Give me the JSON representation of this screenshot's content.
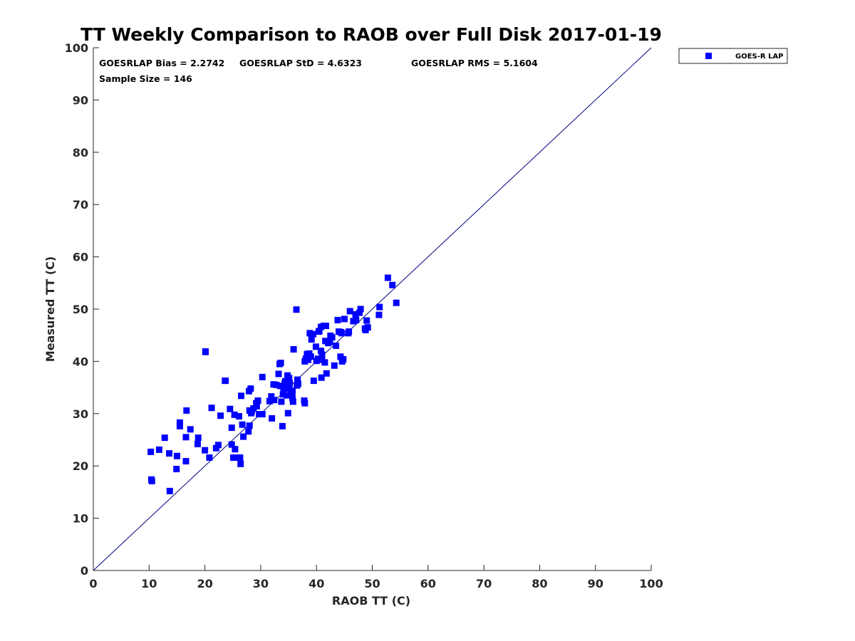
{
  "colors": {
    "series": "#0000ff",
    "axis": "#262626",
    "line": "#000080"
  },
  "stats": {
    "bias": "GOESRLAP Bias = 2.2742",
    "std": "GOESRLAP StD = 4.6323",
    "rms": "GOESRLAP RMS = 5.1604",
    "sample": "Sample Size = 146"
  },
  "chart_data": {
    "type": "scatter",
    "title": "TT Weekly Comparison to RAOB over Full Disk 2017-01-19",
    "xlabel": "RAOB TT (C)",
    "ylabel": "Measured TT (C)",
    "xlim": [
      0,
      100
    ],
    "ylim": [
      0,
      100
    ],
    "xticks": [
      0,
      10,
      20,
      30,
      40,
      50,
      60,
      70,
      80,
      90,
      100
    ],
    "yticks": [
      0,
      10,
      20,
      30,
      40,
      50,
      60,
      70,
      80,
      90,
      100
    ],
    "reference_line": {
      "name": "1:1",
      "x": [
        0,
        100
      ],
      "y": [
        0,
        100
      ]
    },
    "legend": {
      "position": "outside-top-right",
      "entries": [
        "GOES-R LAP"
      ]
    },
    "series": [
      {
        "name": "GOES-R LAP",
        "marker": "square",
        "x": [
          10.4,
          10.5,
          10.3,
          11.8,
          12.8,
          13.7,
          13.6,
          14.9,
          15.0,
          15.5,
          15.5,
          16.6,
          16.6,
          16.7,
          17.4,
          18.7,
          18.8,
          20.0,
          20.1,
          20.8,
          21.2,
          22.0,
          22.4,
          22.8,
          23.7,
          24.5,
          24.8,
          24.8,
          25.1,
          25.3,
          25.4,
          25.6,
          26.1,
          26.3,
          26.4,
          26.5,
          26.7,
          26.9,
          27.8,
          27.9,
          28.0,
          28.0,
          28.2,
          28.3,
          28.4,
          28.7,
          29.2,
          29.3,
          29.5,
          29.7,
          30.3,
          30.3,
          31.6,
          31.9,
          32.0,
          32.3,
          32.4,
          32.8,
          33.2,
          33.4,
          33.5,
          33.7,
          33.9,
          34.0,
          34.1,
          34.3,
          34.4,
          34.6,
          34.7,
          34.8,
          34.9,
          35.1,
          35.1,
          35.2,
          35.4,
          35.6,
          35.7,
          35.8,
          35.9,
          36.5,
          36.6,
          36.6,
          36.7,
          37.8,
          37.9,
          37.9,
          38.1,
          38.3,
          38.5,
          38.7,
          38.8,
          39.0,
          39.1,
          39.4,
          39.5,
          39.9,
          40.0,
          40.3,
          40.4,
          40.5,
          40.8,
          40.8,
          40.9,
          41.0,
          41.0,
          41.3,
          41.5,
          41.6,
          41.7,
          41.8,
          42.1,
          42.4,
          42.5,
          42.8,
          43.2,
          43.5,
          43.8,
          44.0,
          44.3,
          44.4,
          44.5,
          44.6,
          44.8,
          45.0,
          45.7,
          45.8,
          46.0,
          46.6,
          47.0,
          47.1,
          47.7,
          47.9,
          48.7,
          48.8,
          49.0,
          49.2,
          51.2,
          51.3,
          52.8,
          53.6,
          54.3,
          36.4,
          20.1,
          23.6,
          33.6,
          35.7
        ],
        "y": [
          17.4,
          17.1,
          22.7,
          23.1,
          25.4,
          15.2,
          22.4,
          19.4,
          21.9,
          27.6,
          28.3,
          25.5,
          20.9,
          30.6,
          27.0,
          24.2,
          25.4,
          23.0,
          41.9,
          21.6,
          31.1,
          23.4,
          24.0,
          29.6,
          36.3,
          30.9,
          24.1,
          27.3,
          21.6,
          29.8,
          23.2,
          21.6,
          29.5,
          21.6,
          20.4,
          33.4,
          27.9,
          25.6,
          26.6,
          34.3,
          27.7,
          30.6,
          34.8,
          30.1,
          30.5,
          31.0,
          32.0,
          31.4,
          32.5,
          29.9,
          29.9,
          37.0,
          32.4,
          33.3,
          29.1,
          35.6,
          32.6,
          35.5,
          37.6,
          39.5,
          35.3,
          32.3,
          27.6,
          33.7,
          34.9,
          35.8,
          36.2,
          34.8,
          33.5,
          37.3,
          30.1,
          35.3,
          36.8,
          35.8,
          34.4,
          33.8,
          33.0,
          32.3,
          42.3,
          35.4,
          36.4,
          36.5,
          35.7,
          32.5,
          32.0,
          40.0,
          40.5,
          41.4,
          40.3,
          41.5,
          45.4,
          40.9,
          44.2,
          45.2,
          36.3,
          42.8,
          40.1,
          40.5,
          45.7,
          45.8,
          46.6,
          42.0,
          36.9,
          40.3,
          41.3,
          46.8,
          39.8,
          43.9,
          46.8,
          37.7,
          43.5,
          43.7,
          44.9,
          44.6,
          39.2,
          43.0,
          47.9,
          45.7,
          40.9,
          45.6,
          45.4,
          40.0,
          40.4,
          48.1,
          45.4,
          45.7,
          49.6,
          47.7,
          49.0,
          47.9,
          49.3,
          50.0,
          46.3,
          46.0,
          47.8,
          46.5,
          48.9,
          50.4,
          56.0,
          54.6,
          51.2,
          49.9,
          41.8,
          36.3,
          39.7,
          34.3
        ]
      }
    ]
  }
}
